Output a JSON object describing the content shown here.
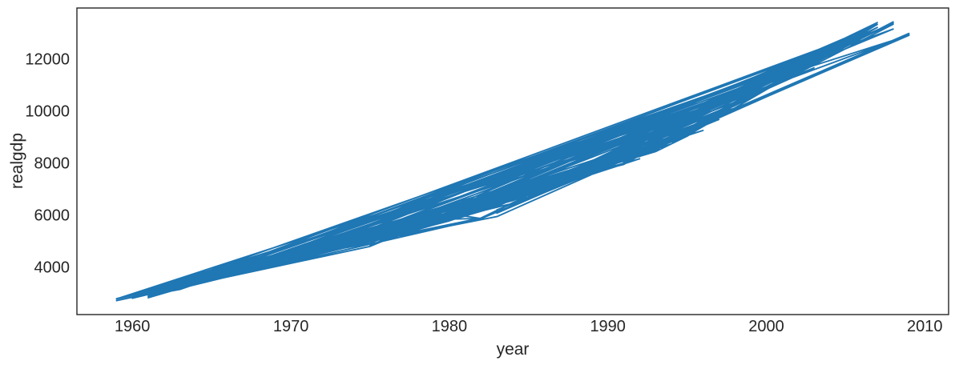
{
  "figure": {
    "background": "#ffffff",
    "plot_background": "#ffffff",
    "spine_color": "#262626",
    "text_color": "#262626"
  },
  "chart_data": {
    "type": "line",
    "title": "",
    "xlabel": "year",
    "ylabel": "realgdp",
    "grid": false,
    "legend": null,
    "line_color": "#1f77b4",
    "line_width": 1.9,
    "xlim": [
      1956.5,
      2011.5
    ],
    "ylim": [
      2175,
      13950
    ],
    "x_tick_values": [
      1960,
      1970,
      1980,
      1990,
      2000,
      2010
    ],
    "x_tick_labels": [
      "1960",
      "1970",
      "1980",
      "1990",
      "2000",
      "2010"
    ],
    "y_tick_values": [
      4000,
      6000,
      8000,
      10000,
      12000
    ],
    "y_tick_labels": [
      "4000",
      "6000",
      "8000",
      "10000",
      "12000"
    ],
    "point_order": "rows plotted unsorted (shuffled), producing criss-crossing line segments",
    "shuffle_seed": 9,
    "series": [
      {
        "name": "realgdp",
        "x_start_year": 1959,
        "points_per_year": 4,
        "x_is_integer_year": true,
        "values": [
          2710.3,
          2778.8,
          2775.5,
          2785.2,
          2847.7,
          2834.4,
          2839.0,
          2802.6,
          2819.3,
          2872.0,
          2918.4,
          2977.8,
          3031.2,
          3064.7,
          3093.0,
          3100.6,
          3141.1,
          3180.4,
          3240.3,
          3264.9,
          3338.2,
          3376.0,
          3422.7,
          3431.8,
          3516.1,
          3563.7,
          3636.2,
          3724.0,
          3815.4,
          3828.1,
          3853.3,
          3884.5,
          3918.7,
          3919.6,
          3950.8,
          3980.2,
          4063.0,
          4131.1,
          4160.3,
          4178.3,
          4244.1,
          4256.5,
          4283.3,
          4263.3,
          4256.6,
          4264.7,
          4302.7,
          4256.0,
          4374.0,
          4398.8,
          4433.9,
          4446.3,
          4525.8,
          4633.1,
          4677.5,
          4754.5,
          4876.2,
          4932.6,
          4906.3,
          4953.1,
          4909.4,
          4922.6,
          4873.7,
          4854.3,
          4795.3,
          4831.9,
          4913.3,
          4977.5,
          5090.7,
          5128.9,
          5154.1,
          5191.5,
          5251.8,
          5356.1,
          5451.9,
          5450.8,
          5469.4,
          5684.6,
          5740.3,
          5816.2,
          5825.9,
          5831.3,
          5873.3,
          5889.5,
          5908.5,
          5787.4,
          5776.6,
          5883.5,
          6005.7,
          5957.8,
          6030.2,
          5955.1,
          5857.3,
          5884.0,
          5861.4,
          5866.0,
          5938.9,
          6072.4,
          6192.2,
          6320.2,
          6442.8,
          6554.0,
          6617.7,
          6671.6,
          6734.5,
          6791.5,
          6897.6,
          6950.0,
          7014.0,
          7035.5,
          7102.0,
          7137.0,
          7188.7,
          7263.2,
          7326.0,
          7452.7,
          7490.2,
          7586.4,
          7625.6,
          7727.4,
          7799.9,
          7858.3,
          7920.6,
          7937.9,
          8020.8,
          8052.7,
          8052.6,
          7982.0,
          7943.4,
          8003.8,
          8037.5,
          8069.0,
          8157.6,
          8244.3,
          8329.4,
          8417.0,
          8432.5,
          8486.4,
          8531.1,
          8643.8,
          8727.9,
          8847.3,
          8904.3,
          9003.2,
          9025.3,
          9044.7,
          9120.7,
          9184.3,
          9247.2,
          9407.1,
          9488.9,
          9592.5,
          9666.2,
          9809.6,
          9932.7,
          10008.9,
          10103.4,
          10194.3,
          10328.8,
          10507.6,
          10601.2,
          10684.0,
          10819.9,
          11014.3,
          11043.0,
          11258.5,
          11267.9,
          11334.5,
          11297.2,
          11371.3,
          11340.1,
          11380.1,
          11477.9,
          11538.8,
          11596.4,
          11598.8,
          11645.8,
          11738.7,
          11935.5,
          12042.8,
          12127.6,
          12213.8,
          12303.5,
          12410.3,
          12534.1,
          12587.5,
          12683.2,
          12748.7,
          12915.9,
          12962.5,
          12965.9,
          13060.7,
          13099.9,
          13204.0,
          13321.1,
          13391.2,
          13366.9,
          13415.3,
          13324.6,
          13141.9,
          12925.4,
          12901.5,
          12973.0
        ]
      }
    ]
  }
}
